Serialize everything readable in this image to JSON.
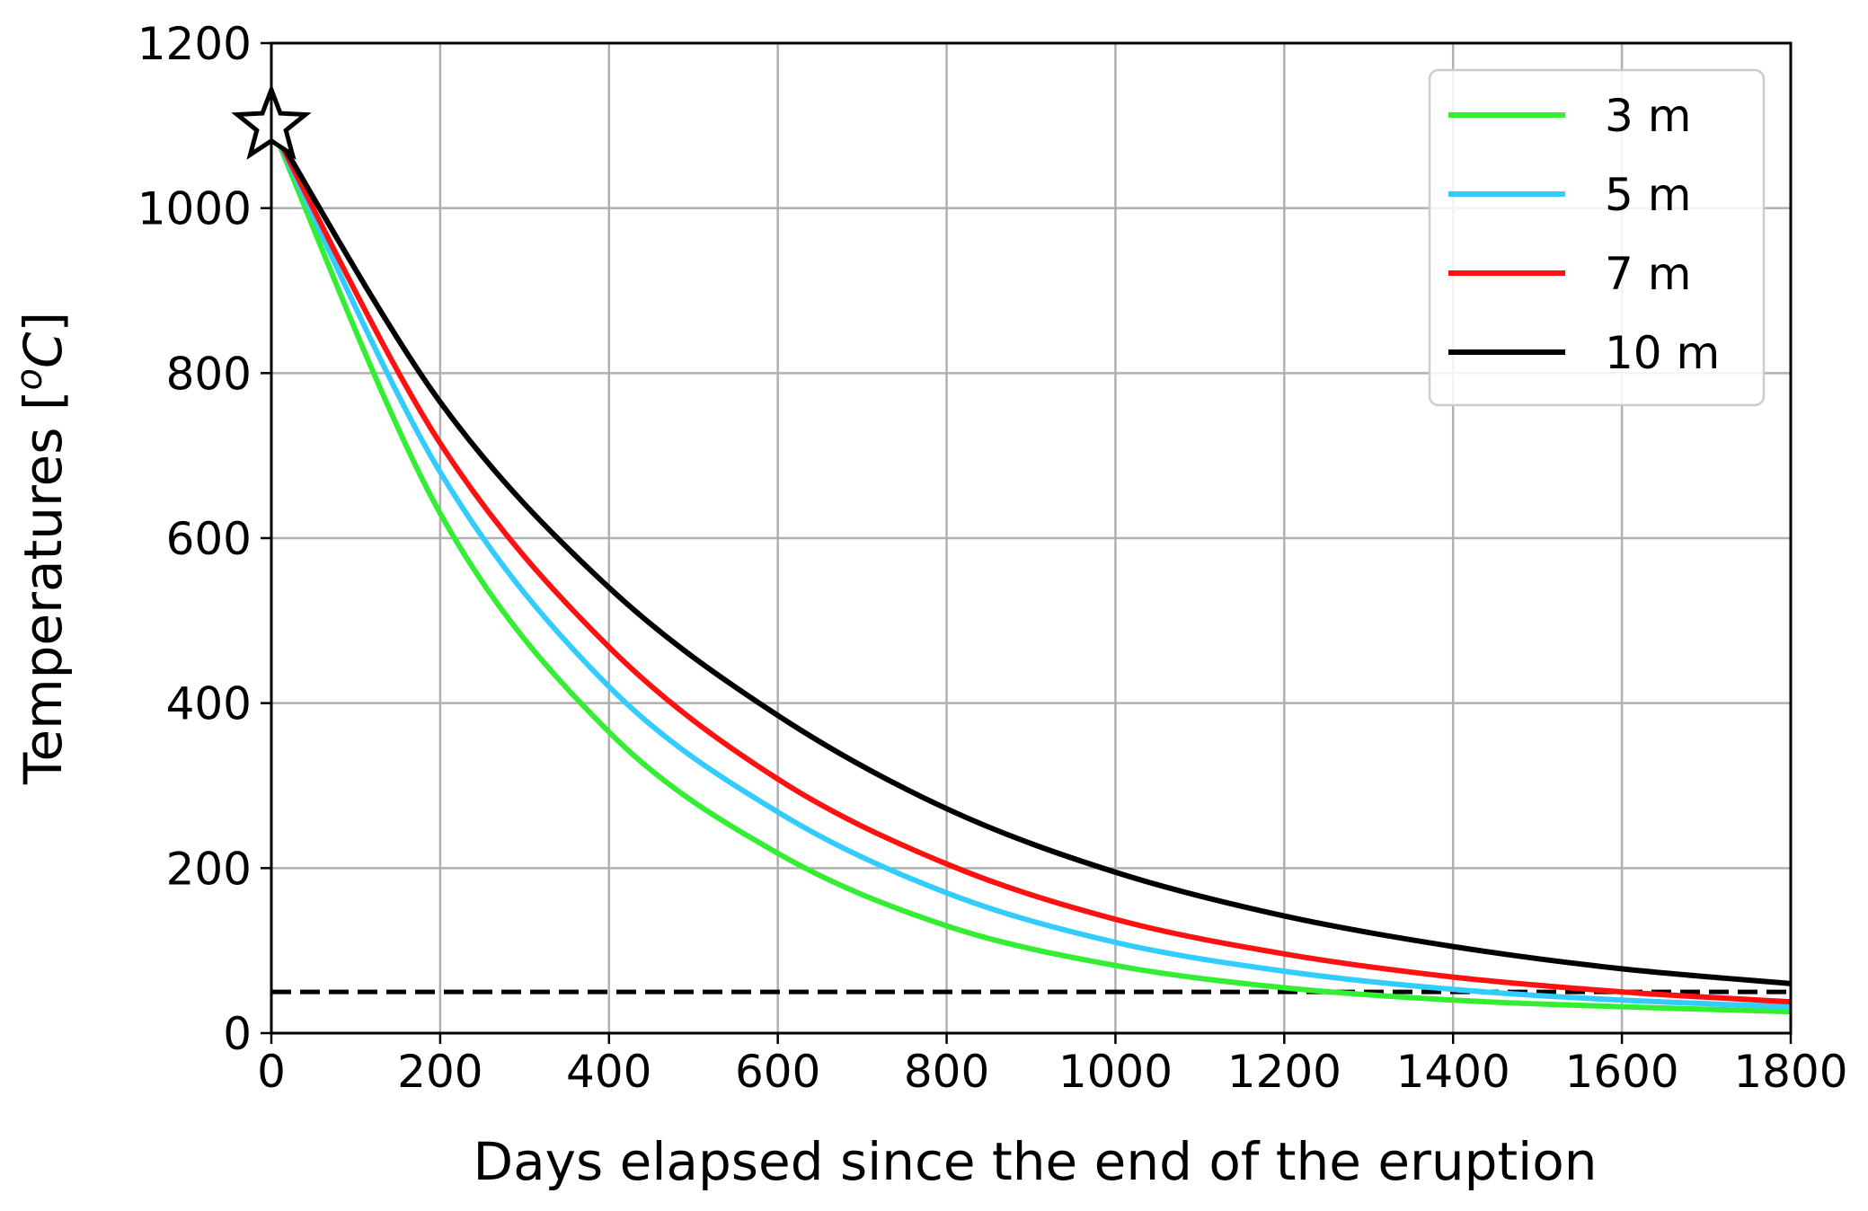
{
  "chart_data": {
    "type": "line",
    "xlabel": "Days elapsed since the end of the eruption",
    "ylabel_main": "Temperatures [",
    "ylabel_sup": "o",
    "ylabel_unit": "C",
    "ylabel_close": "]",
    "xlim": [
      0,
      1800
    ],
    "ylim": [
      0,
      1200
    ],
    "xticks": [
      0,
      200,
      400,
      600,
      800,
      1000,
      1200,
      1400,
      1600,
      1800
    ],
    "yticks": [
      0,
      200,
      400,
      600,
      800,
      1000,
      1200
    ],
    "xtick_labels": [
      "0",
      "200",
      "400",
      "600",
      "800",
      "1000",
      "1200",
      "1400",
      "1600",
      "1800"
    ],
    "ytick_labels": [
      "0",
      "200",
      "400",
      "600",
      "800",
      "1000",
      "1200"
    ],
    "grid": true,
    "legend_position": "top-right",
    "series": [
      {
        "name": "3 m",
        "color": "#33ee33",
        "x": [
          0,
          200,
          400,
          600,
          800,
          1000,
          1200,
          1400,
          1600,
          1800
        ],
        "y": [
          1100,
          630,
          365,
          218,
          130,
          82,
          55,
          40,
          32,
          26
        ]
      },
      {
        "name": "5 m",
        "color": "#33ccff",
        "x": [
          0,
          200,
          400,
          600,
          800,
          1000,
          1200,
          1400,
          1600,
          1800
        ],
        "y": [
          1100,
          680,
          420,
          268,
          170,
          110,
          75,
          53,
          40,
          32
        ]
      },
      {
        "name": "7 m",
        "color": "#ff1111",
        "x": [
          0,
          200,
          400,
          600,
          800,
          1000,
          1200,
          1400,
          1600,
          1800
        ],
        "y": [
          1100,
          715,
          468,
          308,
          205,
          138,
          96,
          68,
          50,
          38
        ]
      },
      {
        "name": "10 m",
        "color": "#000000",
        "x": [
          0,
          200,
          400,
          600,
          800,
          1000,
          1200,
          1400,
          1600,
          1800
        ],
        "y": [
          1100,
          765,
          540,
          385,
          272,
          195,
          142,
          105,
          78,
          60
        ]
      }
    ],
    "reference_line": {
      "y": 50,
      "style": "dashed",
      "color": "#000000"
    },
    "start_marker": {
      "x": 0,
      "y": 1100,
      "shape": "star"
    }
  }
}
